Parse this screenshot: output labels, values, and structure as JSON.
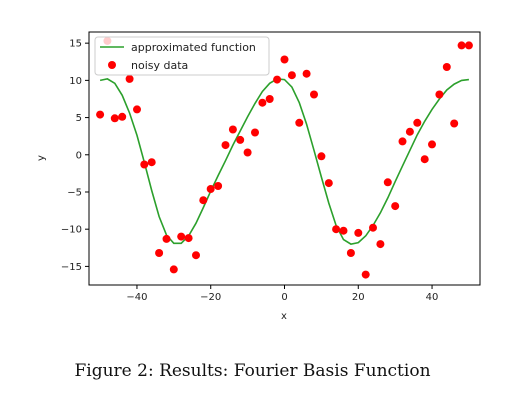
{
  "caption": "Figure 2: Results: Fourier Basis Function",
  "chart_data": {
    "type": "line",
    "xlabel": "x",
    "ylabel": "y",
    "xlim": [
      -53,
      53
    ],
    "ylim": [
      -17.5,
      16.5
    ],
    "xticks": [
      -40,
      -20,
      0,
      20,
      40
    ],
    "yticks": [
      -15,
      -10,
      -5,
      0,
      5,
      10,
      15
    ],
    "grid": false,
    "legend_position": "top-left",
    "series": [
      {
        "name": "approximated function",
        "kind": "line",
        "color": "#2ca02c",
        "x": [
          -50,
          -48,
          -46,
          -44,
          -42,
          -40,
          -38,
          -36,
          -34,
          -32,
          -30,
          -28,
          -26,
          -24,
          -22,
          -20,
          -18,
          -16,
          -14,
          -12,
          -10,
          -8,
          -6,
          -4,
          -2,
          0,
          2,
          4,
          6,
          8,
          10,
          12,
          14,
          16,
          18,
          20,
          22,
          24,
          26,
          28,
          30,
          32,
          34,
          36,
          38,
          40,
          42,
          44,
          46,
          48,
          50
        ],
        "y": [
          10.0,
          10.2,
          9.6,
          8.0,
          5.6,
          2.6,
          -1.0,
          -4.8,
          -8.3,
          -10.8,
          -11.9,
          -11.9,
          -10.9,
          -9.2,
          -7.1,
          -4.9,
          -2.8,
          -0.8,
          1.3,
          3.2,
          5.1,
          6.9,
          8.5,
          9.6,
          10.2,
          10.1,
          9.1,
          7.0,
          4.1,
          0.6,
          -3.0,
          -6.5,
          -9.5,
          -11.4,
          -12.0,
          -11.8,
          -10.9,
          -9.5,
          -7.8,
          -5.8,
          -3.6,
          -1.5,
          0.6,
          2.7,
          4.5,
          6.1,
          7.5,
          8.7,
          9.5,
          10.0,
          10.1
        ]
      },
      {
        "name": "noisy data",
        "kind": "scatter",
        "color": "#ff0000",
        "x": [
          -50,
          -48,
          -46,
          -44,
          -42,
          -40,
          -38,
          -36,
          -34,
          -32,
          -30,
          -28,
          -26,
          -24,
          -22,
          -20,
          -18,
          -16,
          -14,
          -12,
          -10,
          -8,
          -6,
          -4,
          -2,
          0,
          2,
          4,
          6,
          8,
          10,
          12,
          14,
          16,
          18,
          20,
          22,
          24,
          26,
          28,
          30,
          32,
          34,
          36,
          38,
          40,
          42,
          44,
          46,
          48,
          50
        ],
        "y": [
          5.4,
          15.3,
          4.9,
          5.1,
          10.2,
          6.1,
          -1.3,
          -1.0,
          -13.2,
          -11.3,
          -15.4,
          -11.0,
          -11.2,
          -13.5,
          -6.1,
          -4.6,
          -4.2,
          1.3,
          3.4,
          2.0,
          0.3,
          3.0,
          7.0,
          7.5,
          10.1,
          12.8,
          10.7,
          4.3,
          10.9,
          8.1,
          -0.2,
          -3.8,
          -10.0,
          -10.2,
          -13.2,
          -10.5,
          -16.1,
          -9.8,
          -12.0,
          -3.7,
          -6.9,
          1.8,
          3.1,
          4.3,
          -0.6,
          1.4,
          8.1,
          11.8,
          4.2,
          14.7,
          14.7
        ]
      }
    ]
  }
}
